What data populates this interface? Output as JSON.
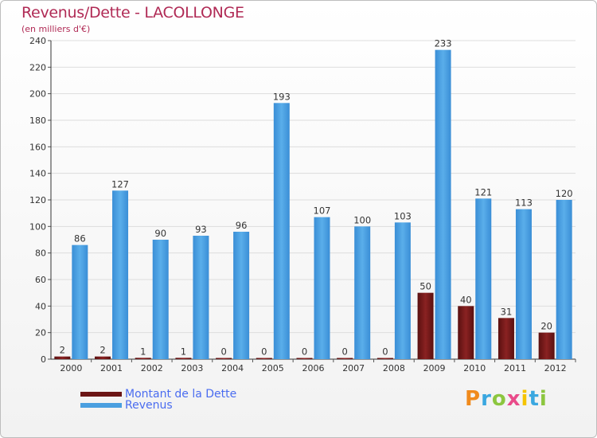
{
  "title": "Revenus/Dette - LACOLLONGE",
  "subtitle": "(en milliers d'€)",
  "logo_text": "Proxiti",
  "colors": {
    "dette": "#6b1515",
    "revenus": "#4a9fe0",
    "title": "#b02a55",
    "legend_text": "#4a6cf0"
  },
  "chart_data": {
    "type": "bar",
    "title": "Revenus/Dette - LACOLLONGE",
    "ylabel": "(en milliers d'€)",
    "xlabel": "",
    "ylim": [
      0,
      240
    ],
    "ytick_step": 20,
    "grid": true,
    "legend_position": "bottom-left",
    "categories": [
      "2000",
      "2001",
      "2002",
      "2003",
      "2004",
      "2005",
      "2006",
      "2007",
      "2008",
      "2009",
      "2010",
      "2011",
      "2012"
    ],
    "series": [
      {
        "name": "Montant de la Dette",
        "values": [
          2,
          2,
          1,
          1,
          0,
          0,
          0,
          0,
          0,
          50,
          40,
          31,
          20
        ]
      },
      {
        "name": "Revenus",
        "values": [
          86,
          127,
          90,
          93,
          96,
          193,
          107,
          100,
          103,
          233,
          121,
          113,
          120
        ]
      }
    ]
  }
}
